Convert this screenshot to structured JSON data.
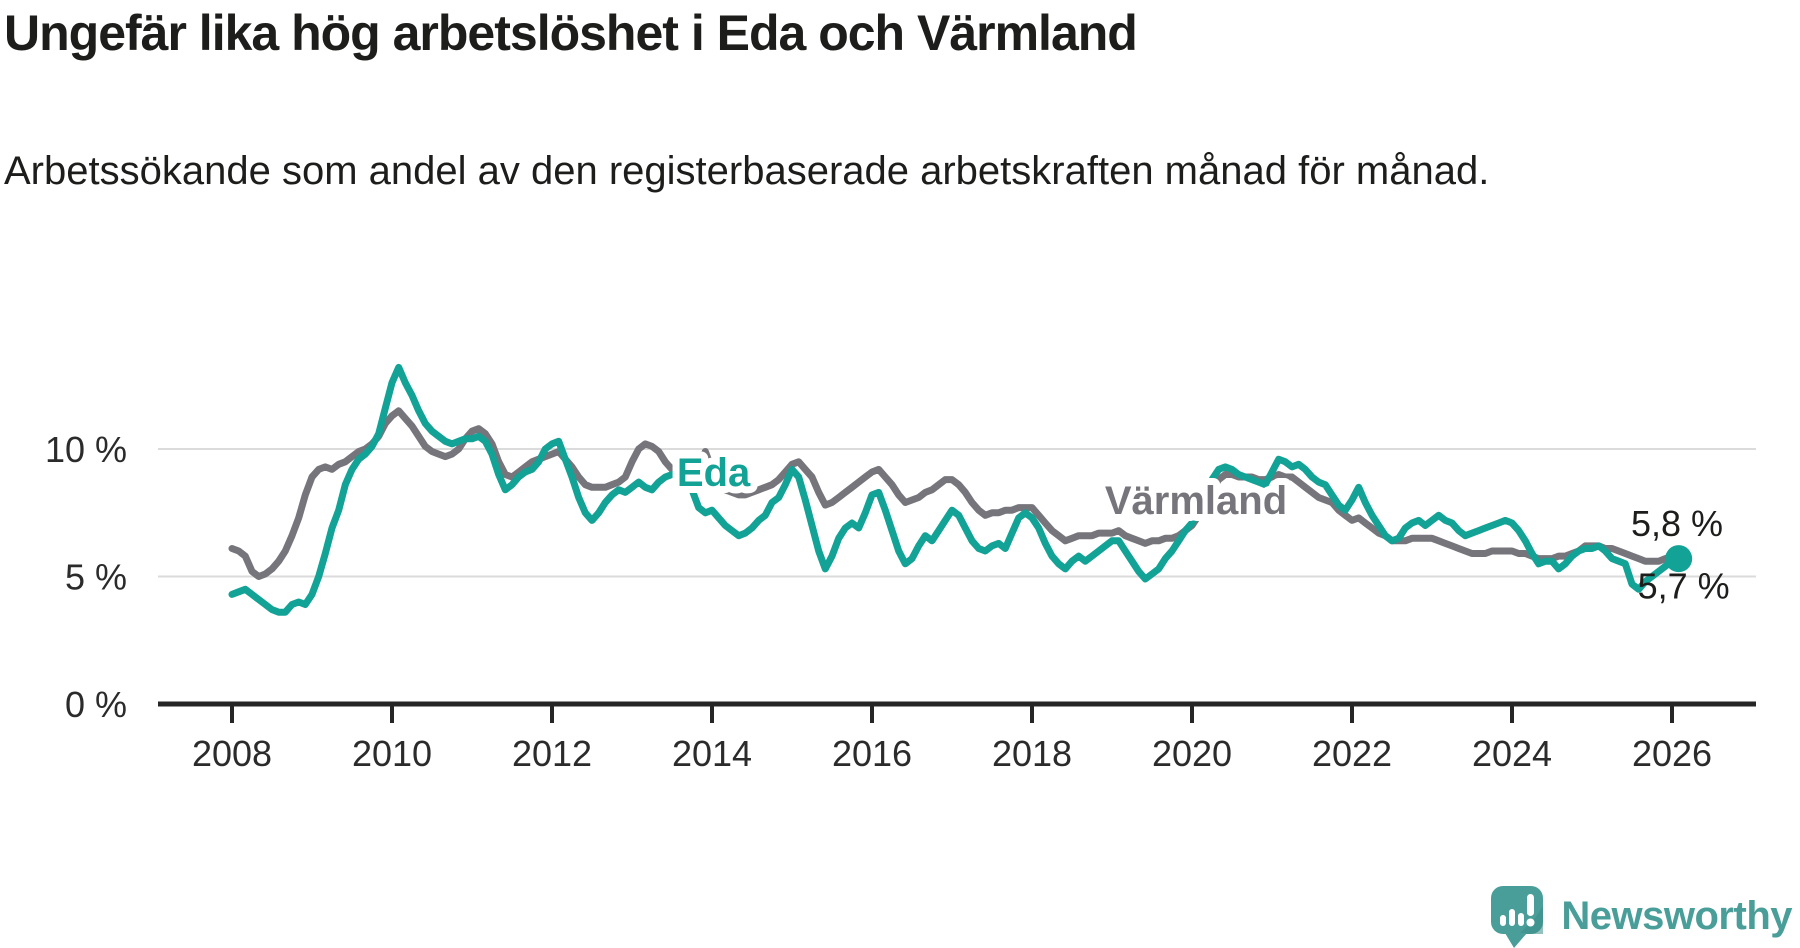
{
  "header": {
    "title": "Ungefär lika hög arbetslöshet i Eda och Värmland",
    "subtitle": "Arbetssökande som andel av den registerbaserade arbetskraften månad för månad."
  },
  "footer": {
    "brand": "Newsworthy"
  },
  "colors": {
    "eda_line": "#12a296",
    "varmland_line": "#76757b",
    "grid": "#dbdbdb",
    "axis": "#262626",
    "text": "#1d1d1b",
    "tick_text": "#2b2b2b",
    "logo_teal": "#4a9e99",
    "logo_shade": "#3d8d88",
    "background": "#ffffff"
  },
  "chart_data": {
    "type": "line",
    "title": "Ungefär lika hög arbetslöshet i Eda och Värmland",
    "subtitle": "Arbetssökande som andel av den registerbaserade arbetskraften månad för månad.",
    "xlabel": "",
    "ylabel": "",
    "grid": "horizontal",
    "legend_position": "inline-labels",
    "x_axis": {
      "unit": "year",
      "range": [
        2007.1,
        2027.0
      ],
      "ticks": [
        2008,
        2010,
        2012,
        2014,
        2016,
        2018,
        2020,
        2022,
        2024,
        2026
      ]
    },
    "y_axis": {
      "unit": "percent",
      "range": [
        0,
        14
      ],
      "ticks": [
        {
          "value": 0,
          "label": "0 %"
        },
        {
          "value": 5,
          "label": "5 %"
        },
        {
          "value": 10,
          "label": "10 %"
        }
      ]
    },
    "series": [
      {
        "name": "Eda",
        "color": "#12a296",
        "end_value": 5.7,
        "end_label": "5,7 %",
        "end_label_side": "below",
        "end_marker": true,
        "label_pos": [
          2014.02,
          9.1
        ],
        "start_year": 2008,
        "step_months": 1,
        "values": [
          4.3,
          4.4,
          4.5,
          4.3,
          4.1,
          3.9,
          3.7,
          3.6,
          3.6,
          3.9,
          4.0,
          3.9,
          4.3,
          5.0,
          5.9,
          6.9,
          7.6,
          8.6,
          9.2,
          9.6,
          9.8,
          10.1,
          10.6,
          11.6,
          12.6,
          13.2,
          12.6,
          12.1,
          11.5,
          11.0,
          10.7,
          10.5,
          10.3,
          10.2,
          10.3,
          10.4,
          10.4,
          10.5,
          10.3,
          9.8,
          9.0,
          8.4,
          8.6,
          8.9,
          9.1,
          9.2,
          9.5,
          10.0,
          10.2,
          10.3,
          9.6,
          8.9,
          8.1,
          7.5,
          7.2,
          7.5,
          7.9,
          8.2,
          8.4,
          8.3,
          8.5,
          8.7,
          8.5,
          8.4,
          8.7,
          8.9,
          9.0,
          9.0,
          8.9,
          8.4,
          7.7,
          7.5,
          7.6,
          7.3,
          7.0,
          6.8,
          6.6,
          6.7,
          6.9,
          7.2,
          7.4,
          7.9,
          8.1,
          8.6,
          9.2,
          8.9,
          8.0,
          7.0,
          6.0,
          5.3,
          5.8,
          6.5,
          6.9,
          7.1,
          6.9,
          7.5,
          8.2,
          8.3,
          7.6,
          6.8,
          6.0,
          5.5,
          5.7,
          6.2,
          6.6,
          6.4,
          6.8,
          7.2,
          7.6,
          7.4,
          6.9,
          6.4,
          6.1,
          6.0,
          6.2,
          6.3,
          6.1,
          6.7,
          7.3,
          7.5,
          7.3,
          6.9,
          6.3,
          5.8,
          5.5,
          5.3,
          5.6,
          5.8,
          5.6,
          5.8,
          6.0,
          6.2,
          6.4,
          6.4,
          6.0,
          5.6,
          5.2,
          4.9,
          5.1,
          5.3,
          5.7,
          6.0,
          6.4,
          6.8,
          7.1,
          7.6,
          8.2,
          8.8,
          9.2,
          9.3,
          9.2,
          9.0,
          8.9,
          8.8,
          8.7,
          8.6,
          9.1,
          9.6,
          9.5,
          9.3,
          9.4,
          9.2,
          8.9,
          8.7,
          8.6,
          8.2,
          7.8,
          7.6,
          8.0,
          8.5,
          7.9,
          7.4,
          7.0,
          6.6,
          6.4,
          6.5,
          6.9,
          7.1,
          7.2,
          7.0,
          7.2,
          7.4,
          7.2,
          7.1,
          6.8,
          6.6,
          6.7,
          6.8,
          6.9,
          7.0,
          7.1,
          7.2,
          7.1,
          6.8,
          6.4,
          5.9,
          5.5,
          5.6,
          5.6,
          5.3,
          5.5,
          5.8,
          6.0,
          6.1,
          6.1,
          6.2,
          6.0,
          5.7,
          5.6,
          5.5,
          4.7,
          4.5,
          4.8,
          5.0,
          5.2,
          5.4,
          5.6,
          5.7
        ]
      },
      {
        "name": "Värmland",
        "color": "#76757b",
        "end_value": 5.8,
        "end_label": "5,8 %",
        "end_label_side": "above",
        "end_marker": false,
        "label_pos": [
          2020.05,
          8.0
        ],
        "start_year": 2008,
        "step_months": 1,
        "values": [
          6.1,
          6.0,
          5.8,
          5.2,
          5.0,
          5.1,
          5.3,
          5.6,
          6.0,
          6.6,
          7.3,
          8.2,
          8.9,
          9.2,
          9.3,
          9.2,
          9.4,
          9.5,
          9.7,
          9.9,
          10.0,
          10.2,
          10.5,
          11.0,
          11.3,
          11.5,
          11.2,
          10.9,
          10.5,
          10.1,
          9.9,
          9.8,
          9.7,
          9.8,
          10.0,
          10.4,
          10.7,
          10.8,
          10.6,
          10.2,
          9.5,
          9.0,
          8.9,
          9.1,
          9.3,
          9.5,
          9.6,
          9.7,
          9.8,
          9.9,
          9.6,
          9.3,
          8.9,
          8.6,
          8.5,
          8.5,
          8.5,
          8.6,
          8.7,
          8.9,
          9.5,
          10.0,
          10.2,
          10.1,
          9.9,
          9.5,
          9.2,
          9.0,
          8.9,
          9.0,
          9.3,
          9.9,
          9.2,
          8.7,
          8.4,
          8.3,
          8.2,
          8.2,
          8.3,
          8.4,
          8.5,
          8.6,
          8.8,
          9.1,
          9.4,
          9.5,
          9.2,
          8.9,
          8.3,
          7.8,
          7.9,
          8.1,
          8.3,
          8.5,
          8.7,
          8.9,
          9.1,
          9.2,
          8.9,
          8.6,
          8.2,
          7.9,
          8.0,
          8.1,
          8.3,
          8.4,
          8.6,
          8.8,
          8.8,
          8.6,
          8.3,
          7.9,
          7.6,
          7.4,
          7.5,
          7.5,
          7.6,
          7.6,
          7.7,
          7.7,
          7.7,
          7.4,
          7.1,
          6.8,
          6.6,
          6.4,
          6.5,
          6.6,
          6.6,
          6.6,
          6.7,
          6.7,
          6.7,
          6.8,
          6.6,
          6.5,
          6.4,
          6.3,
          6.4,
          6.4,
          6.5,
          6.5,
          6.6,
          6.8,
          7.0,
          7.4,
          7.8,
          8.4,
          8.8,
          9.0,
          9.0,
          8.9,
          8.9,
          8.9,
          8.8,
          8.8,
          8.9,
          9.0,
          8.9,
          8.9,
          8.7,
          8.5,
          8.3,
          8.1,
          8.0,
          7.9,
          7.6,
          7.4,
          7.2,
          7.3,
          7.1,
          6.9,
          6.7,
          6.6,
          6.4,
          6.4,
          6.4,
          6.5,
          6.5,
          6.5,
          6.5,
          6.4,
          6.3,
          6.2,
          6.1,
          6.0,
          5.9,
          5.9,
          5.9,
          6.0,
          6.0,
          6.0,
          6.0,
          5.9,
          5.9,
          5.8,
          5.7,
          5.7,
          5.7,
          5.8,
          5.8,
          5.9,
          6.0,
          6.2,
          6.2,
          6.2,
          6.1,
          6.1,
          6.0,
          5.9,
          5.8,
          5.7,
          5.6,
          5.6,
          5.6,
          5.7,
          5.8
        ]
      }
    ]
  }
}
